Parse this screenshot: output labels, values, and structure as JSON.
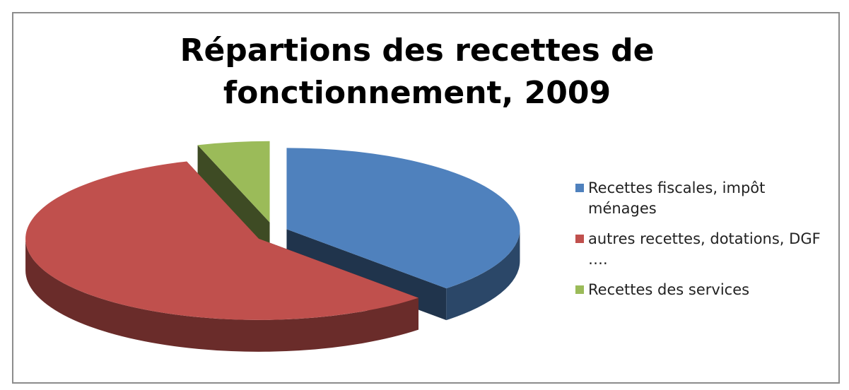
{
  "chart_data": {
    "type": "pie",
    "title": "Répartions des recettes de fonctionnement, 2009",
    "categories": [
      "Recettes fiscales, impôt ménages",
      "autres recettes, dotations, DGF ….",
      "Recettes des services"
    ],
    "values": [
      38,
      57,
      5
    ],
    "colors": [
      "#4f81bd",
      "#c0504d",
      "#9bbb59"
    ],
    "legend": "right"
  }
}
